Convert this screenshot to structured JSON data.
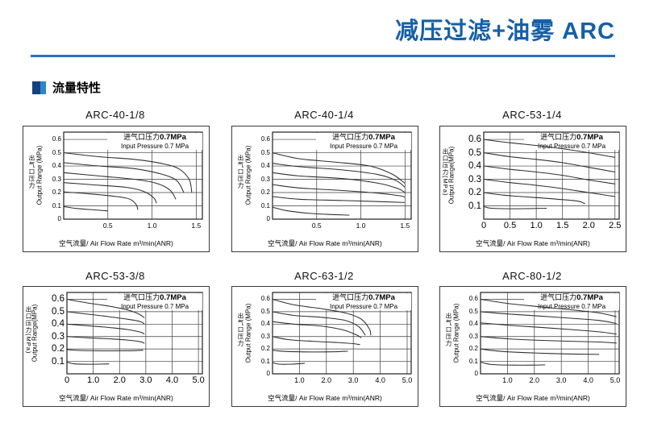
{
  "page": {
    "title": "减压过滤+油雾 ARC",
    "section_label": "流量特性",
    "colors": {
      "title_blue": "#1560a8",
      "rule_blue": "#2472b8",
      "icon_dark_blue": "#16417f",
      "icon_light_blue": "#2e86c8",
      "curve_color": "#2f2f2f",
      "grid_color": "#3c3c3c"
    }
  },
  "shared": {
    "x_axis_title": "空气流量/ Air Flow Rate m³/min(ANR)",
    "annotation_cn": "进气口压力",
    "annotation_val": "0.7MPa",
    "annotation_en": "Input Pressure 0.7 MPa"
  },
  "chart_data": [
    {
      "type": "line",
      "name": "ARC-40-1/8",
      "ylabel_cn": "出气口压力",
      "ylabel_en": "Output Range (MPa)",
      "xlabel": "空气流量/ Air Flow Rate m³/min(ANR)",
      "annotation": "进气口压力0.7MPa / Input Pressure 0.7 MPa",
      "y_ticks": [
        "0",
        "0.1",
        "0.2",
        "0.3",
        "0.4",
        "0.5",
        "0.6"
      ],
      "x_ticks": [
        "0.5",
        "1.0",
        "1.5"
      ],
      "xmax": 1.57,
      "ylim": [
        0,
        0.655
      ],
      "curves": [
        [
          [
            0,
            0.5
          ],
          [
            0.4,
            0.47
          ],
          [
            0.8,
            0.45
          ],
          [
            1.1,
            0.42
          ],
          [
            1.3,
            0.38
          ],
          [
            1.42,
            0.3
          ],
          [
            1.45,
            0.2
          ]
        ],
        [
          [
            0,
            0.425
          ],
          [
            0.4,
            0.4
          ],
          [
            0.8,
            0.38
          ],
          [
            1.1,
            0.34
          ],
          [
            1.28,
            0.29
          ],
          [
            1.36,
            0.2
          ]
        ],
        [
          [
            0,
            0.35
          ],
          [
            0.4,
            0.325
          ],
          [
            0.8,
            0.3
          ],
          [
            1.05,
            0.27
          ],
          [
            1.2,
            0.22
          ],
          [
            1.27,
            0.15
          ]
        ],
        [
          [
            0,
            0.275
          ],
          [
            0.3,
            0.26
          ],
          [
            0.7,
            0.24
          ],
          [
            0.9,
            0.21
          ],
          [
            1.02,
            0.16
          ],
          [
            1.05,
            0.12
          ]
        ],
        [
          [
            0,
            0.205
          ],
          [
            0.3,
            0.19
          ],
          [
            0.6,
            0.17
          ],
          [
            0.75,
            0.15
          ],
          [
            0.82,
            0.11
          ],
          [
            0.84,
            0.07
          ]
        ],
        [
          [
            0,
            0.095
          ],
          [
            0.15,
            0.08
          ],
          [
            0.35,
            0.07
          ],
          [
            0.5,
            0.062
          ]
        ]
      ]
    },
    {
      "type": "line",
      "name": "ARC-40-1/4",
      "ylabel_cn": "出气口压力",
      "ylabel_en": "Output Range (MPa)",
      "xlabel": "空气流量/ Air Flow Rate m³/min(ANR)",
      "annotation": "进气口压力0.7MPa / Input Pressure 0.7 MPa",
      "y_ticks": [
        "0",
        "0.1",
        "0.2",
        "0.3",
        "0.4",
        "0.5",
        "0.6"
      ],
      "x_ticks": [
        "0.5",
        "1.0",
        "1.5"
      ],
      "xmax": 1.57,
      "ylim": [
        0,
        0.655
      ],
      "curves": [
        [
          [
            0,
            0.5
          ],
          [
            0.3,
            0.455
          ],
          [
            0.7,
            0.43
          ],
          [
            1.1,
            0.4
          ],
          [
            1.35,
            0.34
          ],
          [
            1.5,
            0.27
          ]
        ],
        [
          [
            0,
            0.42
          ],
          [
            0.3,
            0.395
          ],
          [
            0.8,
            0.37
          ],
          [
            1.2,
            0.335
          ],
          [
            1.4,
            0.29
          ],
          [
            1.5,
            0.24
          ]
        ],
        [
          [
            0,
            0.35
          ],
          [
            0.3,
            0.325
          ],
          [
            0.8,
            0.305
          ],
          [
            1.2,
            0.27
          ],
          [
            1.42,
            0.23
          ],
          [
            1.5,
            0.2
          ]
        ],
        [
          [
            0,
            0.26
          ],
          [
            0.3,
            0.235
          ],
          [
            0.8,
            0.215
          ],
          [
            1.2,
            0.195
          ],
          [
            1.45,
            0.175
          ],
          [
            1.5,
            0.165
          ]
        ],
        [
          [
            0,
            0.17
          ],
          [
            0.3,
            0.15
          ],
          [
            0.8,
            0.14
          ],
          [
            1.2,
            0.132
          ],
          [
            1.5,
            0.125
          ]
        ],
        [
          [
            0,
            0.09
          ],
          [
            0.15,
            0.065
          ],
          [
            0.4,
            0.045
          ],
          [
            0.65,
            0.035
          ],
          [
            0.87,
            0.03
          ]
        ]
      ]
    },
    {
      "type": "line",
      "name": "ARC-53-1/4",
      "ylabel_cn": "出口压力(MPa)",
      "ylabel_en": "Output Range(MPa)",
      "xlabel": "空气流量/ Air Flow Rate m³/min(ANR)",
      "annotation": "进气口压力0.7MPa / Input Pressure 0.7 MPa",
      "y_ticks": [
        "0.1",
        "0.2",
        "0.3",
        "0.4",
        "0.5",
        "0.6"
      ],
      "x_ticks": [
        "0",
        "0.5",
        "1.0",
        "1.5",
        "2.0",
        "2.5"
      ],
      "xmax": 2.58,
      "ylim": [
        0,
        0.655
      ],
      "curves": [
        [
          [
            0,
            0.6
          ],
          [
            0.5,
            0.575
          ],
          [
            1.0,
            0.555
          ],
          [
            1.5,
            0.53
          ],
          [
            2.0,
            0.5
          ],
          [
            2.5,
            0.465
          ]
        ],
        [
          [
            0,
            0.5
          ],
          [
            0.5,
            0.47
          ],
          [
            1.0,
            0.45
          ],
          [
            1.5,
            0.425
          ],
          [
            2.0,
            0.39
          ],
          [
            2.5,
            0.355
          ]
        ],
        [
          [
            0,
            0.4
          ],
          [
            0.5,
            0.375
          ],
          [
            1.0,
            0.355
          ],
          [
            1.5,
            0.33
          ],
          [
            2.0,
            0.295
          ],
          [
            2.5,
            0.265
          ]
        ],
        [
          [
            0,
            0.3
          ],
          [
            0.5,
            0.275
          ],
          [
            1.0,
            0.255
          ],
          [
            1.5,
            0.23
          ],
          [
            2.0,
            0.2
          ],
          [
            2.5,
            0.17
          ]
        ],
        [
          [
            0,
            0.2
          ],
          [
            0.4,
            0.18
          ],
          [
            0.9,
            0.165
          ],
          [
            1.4,
            0.15
          ],
          [
            1.8,
            0.135
          ],
          [
            1.93,
            0.115
          ]
        ],
        [
          [
            0,
            0.095
          ],
          [
            0.15,
            0.082
          ],
          [
            0.6,
            0.078
          ],
          [
            1.2,
            0.082
          ]
        ]
      ]
    },
    {
      "type": "line",
      "name": "ARC-53-3/8",
      "ylabel_cn": "出口压力(MPa)",
      "ylabel_en": "Output Range(MPa)",
      "xlabel": "空气流量/ Air Flow Rate m³/min(ANR)",
      "annotation": "进气口压力0.7MPa / Input Pressure 0.7 MPa",
      "y_ticks": [
        "0.1",
        "0.2",
        "0.3",
        "0.4",
        "0.5",
        "0.6"
      ],
      "x_ticks": [
        "0",
        "1.0",
        "2.0",
        "3.0",
        "4.0",
        "5.0"
      ],
      "xmax": 5.15,
      "ylim": [
        0,
        0.655
      ],
      "curves": [
        [
          [
            0,
            0.6
          ],
          [
            0.8,
            0.57
          ],
          [
            1.6,
            0.545
          ],
          [
            2.3,
            0.515
          ],
          [
            2.75,
            0.48
          ],
          [
            2.95,
            0.45
          ]
        ],
        [
          [
            0,
            0.5
          ],
          [
            0.8,
            0.48
          ],
          [
            1.6,
            0.46
          ],
          [
            2.3,
            0.44
          ],
          [
            2.8,
            0.42
          ],
          [
            2.95,
            0.4
          ]
        ],
        [
          [
            0,
            0.4
          ],
          [
            0.8,
            0.387
          ],
          [
            1.6,
            0.373
          ],
          [
            2.3,
            0.357
          ],
          [
            2.8,
            0.335
          ],
          [
            2.95,
            0.32
          ]
        ],
        [
          [
            0,
            0.3
          ],
          [
            0.8,
            0.29
          ],
          [
            1.6,
            0.282
          ],
          [
            2.3,
            0.272
          ],
          [
            2.8,
            0.258
          ],
          [
            2.95,
            0.245
          ]
        ],
        [
          [
            0,
            0.195
          ],
          [
            0.5,
            0.188
          ],
          [
            1.5,
            0.185
          ],
          [
            2.4,
            0.186
          ],
          [
            2.9,
            0.19
          ]
        ],
        [
          [
            0,
            0.095
          ],
          [
            0.3,
            0.08
          ],
          [
            0.9,
            0.077
          ],
          [
            1.6,
            0.08
          ]
        ]
      ]
    },
    {
      "type": "line",
      "name": "ARC-63-1/2",
      "ylabel_cn": "出气口压力",
      "ylabel_en": "Output Range (MPa)",
      "xlabel": "空气流量/ Air Flow Rate m³/min(ANR)",
      "annotation": "进气口压力0.7MPa / Input Pressure 0.7 MPa",
      "y_ticks": [
        "0",
        "0.1",
        "0.2",
        "0.3",
        "0.4",
        "0.5",
        "0.6"
      ],
      "x_ticks": [
        "1.0",
        "2.0",
        "3.0",
        "4.0",
        "5.0"
      ],
      "xmax": 5.15,
      "ylim": [
        0,
        0.655
      ],
      "curves": [
        [
          [
            0,
            0.6
          ],
          [
            0.8,
            0.555
          ],
          [
            1.8,
            0.525
          ],
          [
            2.7,
            0.49
          ],
          [
            3.3,
            0.44
          ],
          [
            3.6,
            0.36
          ],
          [
            3.65,
            0.31
          ]
        ],
        [
          [
            0,
            0.5
          ],
          [
            0.8,
            0.47
          ],
          [
            1.8,
            0.455
          ],
          [
            2.7,
            0.43
          ],
          [
            3.2,
            0.38
          ],
          [
            3.45,
            0.31
          ]
        ],
        [
          [
            0,
            0.42
          ],
          [
            0.8,
            0.4
          ],
          [
            1.8,
            0.385
          ],
          [
            2.6,
            0.355
          ],
          [
            3.1,
            0.315
          ],
          [
            3.3,
            0.29
          ]
        ],
        [
          [
            0,
            0.3
          ],
          [
            0.6,
            0.275
          ],
          [
            1.5,
            0.262
          ],
          [
            2.4,
            0.252
          ],
          [
            3.0,
            0.243
          ],
          [
            3.25,
            0.235
          ]
        ],
        [
          [
            0,
            0.19
          ],
          [
            0.5,
            0.18
          ],
          [
            1.5,
            0.176
          ],
          [
            2.3,
            0.178
          ],
          [
            2.8,
            0.182
          ]
        ],
        [
          [
            0,
            0.09
          ],
          [
            0.25,
            0.078
          ],
          [
            0.7,
            0.078
          ],
          [
            1.2,
            0.085
          ]
        ]
      ]
    },
    {
      "type": "line",
      "name": "ARC-80-1/2",
      "ylabel_cn": "出气口压力",
      "ylabel_en": "Output Range (MPa)",
      "xlabel": "空气流量/ Air Flow Rate m³/min(ANR)",
      "annotation": "进气口压力0.7MPa / Input Pressure 0.7 MPa",
      "y_ticks": [
        "0",
        "0.1",
        "0.2",
        "0.3",
        "0.4",
        "0.5",
        "0.6"
      ],
      "x_ticks": [
        "1.0",
        "2.0",
        "3.0",
        "4.0",
        "5.0"
      ],
      "xmax": 5.15,
      "ylim": [
        0,
        0.655
      ],
      "curves": [
        [
          [
            0,
            0.6
          ],
          [
            1.0,
            0.567
          ],
          [
            2.2,
            0.54
          ],
          [
            3.4,
            0.515
          ],
          [
            4.4,
            0.49
          ],
          [
            5.05,
            0.46
          ]
        ],
        [
          [
            0,
            0.5
          ],
          [
            1.0,
            0.482
          ],
          [
            2.2,
            0.465
          ],
          [
            3.4,
            0.447
          ],
          [
            4.4,
            0.43
          ],
          [
            5.05,
            0.405
          ]
        ],
        [
          [
            0,
            0.41
          ],
          [
            1.0,
            0.392
          ],
          [
            2.2,
            0.374
          ],
          [
            3.4,
            0.356
          ],
          [
            4.4,
            0.338
          ],
          [
            5.05,
            0.32
          ]
        ],
        [
          [
            0,
            0.3
          ],
          [
            1.0,
            0.282
          ],
          [
            2.2,
            0.27
          ],
          [
            3.4,
            0.262
          ],
          [
            4.4,
            0.256
          ],
          [
            5.05,
            0.248
          ]
        ],
        [
          [
            0,
            0.2
          ],
          [
            0.8,
            0.18
          ],
          [
            2.0,
            0.168
          ],
          [
            3.2,
            0.16
          ],
          [
            4.4,
            0.156
          ]
        ],
        [
          [
            0,
            0.095
          ],
          [
            0.4,
            0.075
          ],
          [
            1.2,
            0.07
          ],
          [
            1.9,
            0.07
          ],
          [
            2.4,
            0.072
          ]
        ]
      ]
    }
  ]
}
